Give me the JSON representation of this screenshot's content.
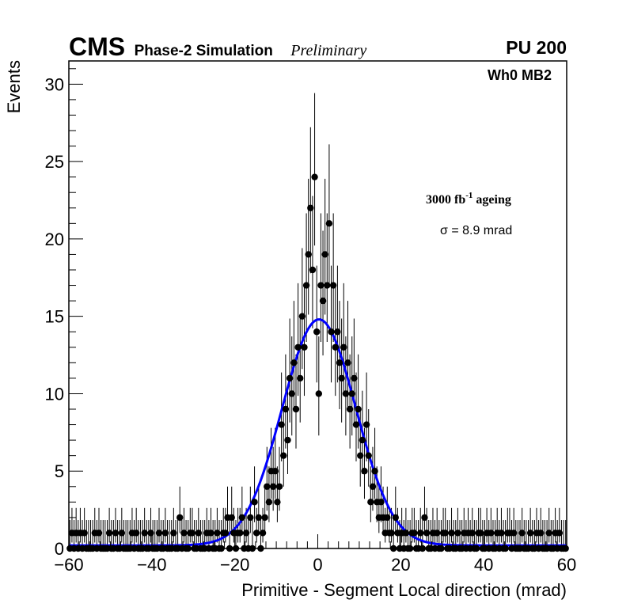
{
  "experiment_label": "CMS",
  "simulation_label": "Phase-2 Simulation",
  "status_label": "Preliminary",
  "pileup_label": "PU 200",
  "region_label": "Wh0 MB2",
  "ageing_label": {
    "prefix": "3000 fb",
    "exponent": "-1",
    "suffix": " ageing"
  },
  "fit_label": "σ = 8.9 mrad",
  "colors": {
    "points": "#000000",
    "fit": "#0000ff",
    "frame": "#000000"
  },
  "chart_data": {
    "type": "scatter",
    "title": "",
    "xlabel": "Primitive - Segment Local direction (mrad)",
    "ylabel": "Events",
    "xlim": [
      -60,
      60
    ],
    "ylim": [
      0,
      31.5
    ],
    "x_ticks": [
      -60,
      -40,
      -20,
      0,
      20,
      40,
      60
    ],
    "y_ticks": [
      0,
      5,
      10,
      15,
      20,
      25,
      30
    ],
    "x_tick_labels": [
      "−60",
      "−40",
      "−20",
      "0",
      "20",
      "40",
      "60"
    ],
    "y_tick_labels": [
      "0",
      "5",
      "10",
      "15",
      "20",
      "25",
      "30"
    ],
    "bin_width": 0.5,
    "series": [
      {
        "name": "Primitive - Segment Local direction",
        "style": "points_with_poisson_errors",
        "x_start": -59.75,
        "values": [
          0,
          1,
          0,
          1,
          0,
          1,
          0,
          1,
          0,
          0,
          0,
          0,
          1,
          0,
          1,
          0,
          0,
          0,
          0,
          1,
          0,
          0,
          1,
          0,
          0,
          1,
          0,
          0,
          0,
          0,
          1,
          0,
          1,
          0,
          0,
          0,
          1,
          0,
          0,
          1,
          0,
          0,
          0,
          1,
          0,
          0,
          1,
          0,
          0,
          0,
          1,
          0,
          0,
          2,
          0,
          1,
          0,
          0,
          1,
          1,
          0,
          0,
          1,
          0,
          0,
          0,
          1,
          0,
          1,
          0,
          0,
          1,
          0,
          0,
          1,
          1,
          2,
          0,
          2,
          1,
          0,
          1,
          1,
          2,
          0,
          1,
          0,
          2,
          0,
          3,
          1,
          2,
          0,
          1,
          2,
          4,
          3,
          5,
          4,
          5,
          3,
          4,
          8,
          6,
          9,
          7,
          11,
          10,
          12,
          9,
          13,
          11,
          15,
          13,
          17,
          19,
          22,
          18,
          24,
          14,
          10,
          17,
          16,
          19,
          17,
          21,
          14,
          17,
          13,
          14,
          12,
          11,
          13,
          10,
          12,
          9,
          10,
          11,
          8,
          9,
          6,
          7,
          5,
          8,
          6,
          3,
          4,
          5,
          3,
          2,
          3,
          2,
          1,
          2,
          1,
          1,
          0,
          2,
          1,
          0,
          1,
          0,
          1,
          0,
          0,
          1,
          1,
          0,
          0,
          1,
          0,
          2,
          1,
          0,
          0,
          1,
          0,
          1,
          0,
          0,
          1,
          1,
          0,
          0,
          1,
          0,
          0,
          1,
          0,
          0,
          1,
          0,
          1,
          0,
          1,
          0,
          0,
          1,
          1,
          0,
          0,
          1,
          0,
          1,
          0,
          0,
          1,
          0,
          1,
          0,
          0,
          1,
          1,
          0,
          1,
          0,
          0,
          0,
          1,
          0,
          0,
          0,
          1,
          0,
          0,
          1,
          0,
          1,
          0,
          0,
          0,
          1,
          0,
          0,
          1,
          0,
          1,
          0,
          0,
          0
        ]
      },
      {
        "name": "Gaussian fit",
        "style": "line",
        "function": "gaussian_plus_constant",
        "amplitude": 14.6,
        "mean": 0.3,
        "sigma": 8.9,
        "constant": 0.2
      }
    ]
  }
}
